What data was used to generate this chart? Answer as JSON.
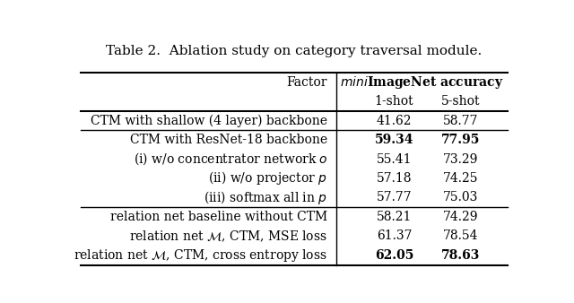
{
  "title": "Table 2.  Ablation study on category traversal module.",
  "header_col": "Factor",
  "subheaders": [
    "1-shot",
    "5-shot"
  ],
  "rows": [
    {
      "group": 0,
      "factor": "CTM with shallow (4 layer) backbone",
      "shot1": "41.62",
      "shot5": "58.77",
      "bold1": false,
      "bold5": false
    },
    {
      "group": 1,
      "factor": "CTM with ResNet-18 backbone",
      "shot1": "59.34",
      "shot5": "77.95",
      "bold1": true,
      "bold5": true
    },
    {
      "group": 1,
      "factor": "(i) w/o concentrator network $\\mathit{o}$",
      "shot1": "55.41",
      "shot5": "73.29",
      "bold1": false,
      "bold5": false
    },
    {
      "group": 1,
      "factor": "(ii) w/o projector $\\mathit{p}$",
      "shot1": "57.18",
      "shot5": "74.25",
      "bold1": false,
      "bold5": false
    },
    {
      "group": 1,
      "factor": "(iii) softmax all in $\\mathit{p}$",
      "shot1": "57.77",
      "shot5": "75.03",
      "bold1": false,
      "bold5": false
    },
    {
      "group": 2,
      "factor": "relation net baseline without CTM",
      "shot1": "58.21",
      "shot5": "74.29",
      "bold1": false,
      "bold5": false
    },
    {
      "group": 2,
      "factor": "relation net $\\mathcal{M}$, CTM, MSE loss",
      "shot1": "61.37",
      "shot5": "78.54",
      "bold1": false,
      "bold5": false
    },
    {
      "group": 2,
      "factor": "relation net $\\mathcal{M}$, CTM, cross entropy loss",
      "shot1": "62.05",
      "shot5": "78.63",
      "bold1": true,
      "bold5": true
    }
  ],
  "bg_color": "#ffffff",
  "text_color": "#000000",
  "line_color": "#000000",
  "title_fontsize": 11,
  "header_fontsize": 10,
  "cell_fontsize": 10
}
